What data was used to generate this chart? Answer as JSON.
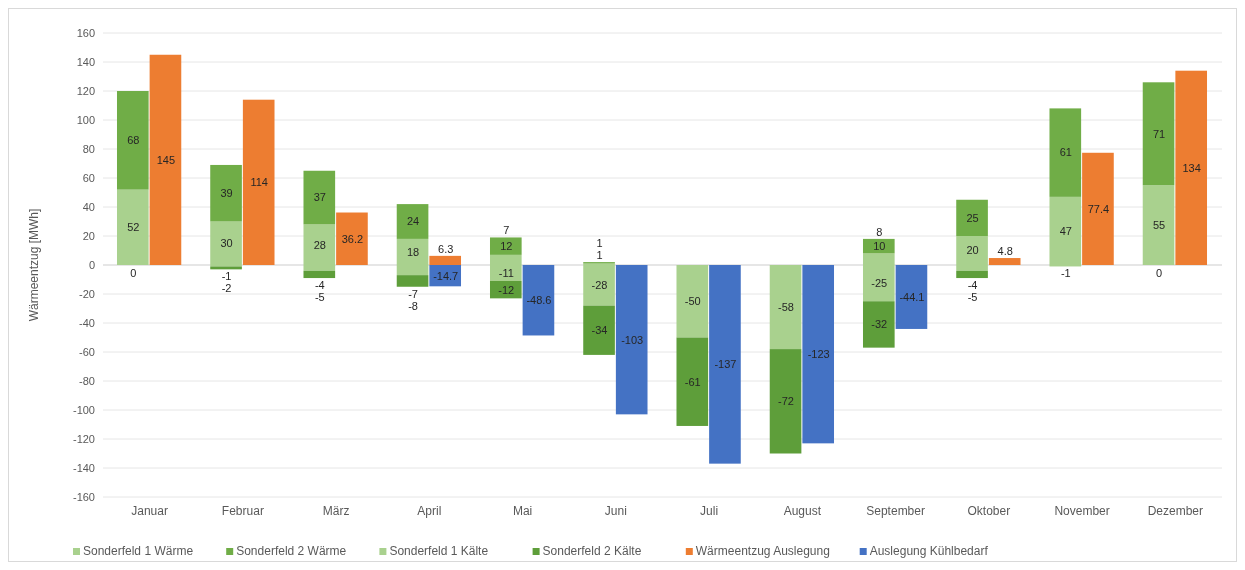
{
  "chart_data": {
    "type": "bar",
    "ylabel": "Wärmeentzug [MWh]",
    "categories": [
      "Januar",
      "Februar",
      "März",
      "April",
      "Mai",
      "Juni",
      "Juli",
      "August",
      "September",
      "Oktober",
      "November",
      "Dezember"
    ],
    "series": [
      {
        "name": "Sonderfeld 1 Wärme",
        "color": "#a9d18e",
        "base": [
          0,
          0,
          0,
          0,
          0,
          0,
          null,
          null,
          0,
          0,
          0,
          0
        ],
        "values": [
          52,
          30,
          28,
          18,
          7,
          1,
          null,
          null,
          8,
          20,
          47,
          55
        ],
        "value_labels": [
          "52",
          "30",
          "28",
          "18",
          "7",
          "1",
          null,
          null,
          "8",
          "20",
          "47",
          "55"
        ]
      },
      {
        "name": "Sonderfeld 2 Wärme",
        "color": "#70ad47",
        "base": [
          52,
          30,
          28,
          18,
          7,
          1,
          null,
          null,
          8,
          20,
          47,
          55
        ],
        "values": [
          68,
          39,
          37,
          24,
          12,
          1,
          null,
          null,
          10,
          25,
          61,
          71
        ],
        "value_labels": [
          "68",
          "39",
          "37",
          "24",
          "12",
          "1",
          null,
          null,
          "10",
          "25",
          "61",
          "71"
        ]
      },
      {
        "name": "Sonderfeld 1 Kälte",
        "color": "#a9d18e",
        "base": [
          null,
          0,
          0,
          0,
          0,
          0,
          0,
          0,
          0,
          0,
          0,
          null
        ],
        "values": [
          null,
          -1,
          -4,
          -7,
          -11,
          -28,
          -50,
          -58,
          -25,
          -4,
          -1,
          null
        ],
        "value_labels": [
          null,
          "-1",
          "-4",
          "-7",
          "-11",
          "-28",
          "-50",
          "-58",
          "-25",
          "-4",
          "-1",
          null
        ]
      },
      {
        "name": "Sonderfeld 2 Kälte",
        "color": "#5e9e3a",
        "base": [
          null,
          -1,
          -4,
          -7,
          -11,
          -28,
          -50,
          -58,
          -25,
          -4,
          null,
          null
        ],
        "values": [
          null,
          -2,
          -5,
          -8,
          -12,
          -34,
          -61,
          -72,
          -32,
          -5,
          null,
          null
        ],
        "value_labels": [
          null,
          "-2",
          "-5",
          "-8",
          "-12",
          "-34",
          "-61",
          "-72",
          "-32",
          "-5",
          null,
          null
        ]
      },
      {
        "name": "Wärmeentzug Auslegung",
        "color": "#ed7d31",
        "values": [
          145,
          114,
          36.2,
          6.3,
          null,
          null,
          null,
          null,
          null,
          4.8,
          77.4,
          134
        ],
        "value_labels": [
          "145",
          "114",
          "36.2",
          "6.3",
          null,
          null,
          null,
          null,
          null,
          "4.8",
          "77.4",
          "134"
        ]
      },
      {
        "name": "Auslegung Kühlbedarf",
        "color": "#4472c4",
        "values": [
          null,
          null,
          null,
          -14.7,
          -48.6,
          -103,
          -137,
          -123,
          -44.1,
          null,
          null,
          null
        ],
        "value_labels": [
          null,
          null,
          null,
          "-14.7",
          "-48.6",
          "-103",
          "-137",
          "-123",
          "-44.1",
          null,
          null,
          null
        ]
      }
    ],
    "ylim": [
      -160,
      160
    ],
    "yticks": [
      -160,
      -140,
      -120,
      -100,
      -80,
      -60,
      -40,
      -20,
      0,
      20,
      40,
      60,
      80,
      100,
      120,
      140,
      160
    ],
    "annotations": [
      {
        "text": "0",
        "x": "Januar",
        "y": 0
      },
      {
        "text": "0",
        "x": "Dezember",
        "y": 0
      }
    ],
    "grid": "y",
    "legend": "bottom"
  }
}
